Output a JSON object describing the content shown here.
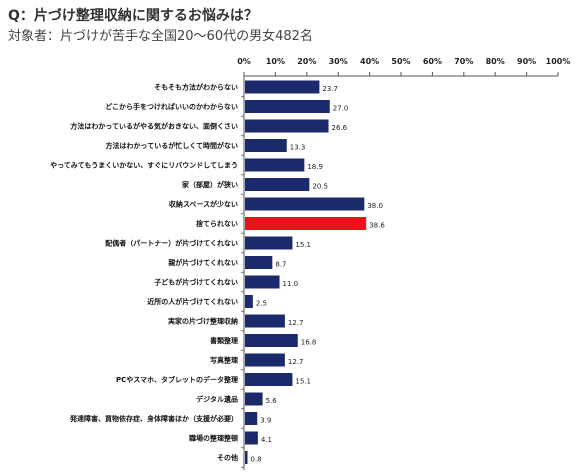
{
  "header": {
    "title": "Q：片づけ整理収納に関するお悩みは？",
    "subtitle": "対象者：片づけが苦手な全国20～60代の男女482名"
  },
  "colors": {
    "bar": "#1b2a6b",
    "highlight": "#e8141b",
    "axis": "#555555",
    "grid": "#d8d8d8"
  },
  "chart_data": {
    "type": "bar",
    "orientation": "horizontal",
    "xlim": [
      0,
      100
    ],
    "x_ticks": [
      "0%",
      "10%",
      "20%",
      "30%",
      "40%",
      "50%",
      "60%",
      "70%",
      "80%",
      "90%",
      "100%"
    ],
    "x_tick_positions": "top",
    "highlight_category": "捨てられない",
    "categories": [
      "そもそも方法がわからない",
      "どこから手をつければいいのかわからない",
      "方法はわかっているがやる気がおきない、面倒くさい",
      "方法はわかっているが忙しくて時間がない",
      "やってみてもうまくいかない、すぐにリバウンドしてしまう",
      "家（部屋）が狭い",
      "収納スペースが少ない",
      "捨てられない",
      "配偶者（パートナー）が片づけてくれない",
      "親が片づけてくれない",
      "子どもが片づけてくれない",
      "近所の人が片づけてくれない",
      "実家の片づけ整理収納",
      "書類整理",
      "写真整理",
      "PCやスマホ、タブレットのデータ整理",
      "デジタル遺品",
      "発達障害、買物依存症、身体障害ほか（支援が必要）",
      "職場の整理整頓",
      "その他"
    ],
    "values": [
      23.7,
      27.0,
      26.6,
      13.3,
      18.9,
      20.5,
      38.0,
      38.6,
      15.1,
      8.7,
      11.0,
      2.5,
      12.7,
      16.8,
      12.7,
      15.1,
      5.6,
      3.9,
      4.1,
      0.8
    ],
    "value_labels": [
      "23.7",
      "27.0",
      "26.6",
      "13.3",
      "18.9",
      "20.5",
      "38.0",
      "38.6",
      "15.1",
      "8.7",
      "11.0",
      "2.5",
      "12.7",
      "16.8",
      "12.7",
      "15.1",
      "5.6",
      "3.9",
      "4.1",
      "0.8"
    ],
    "grid": false
  }
}
